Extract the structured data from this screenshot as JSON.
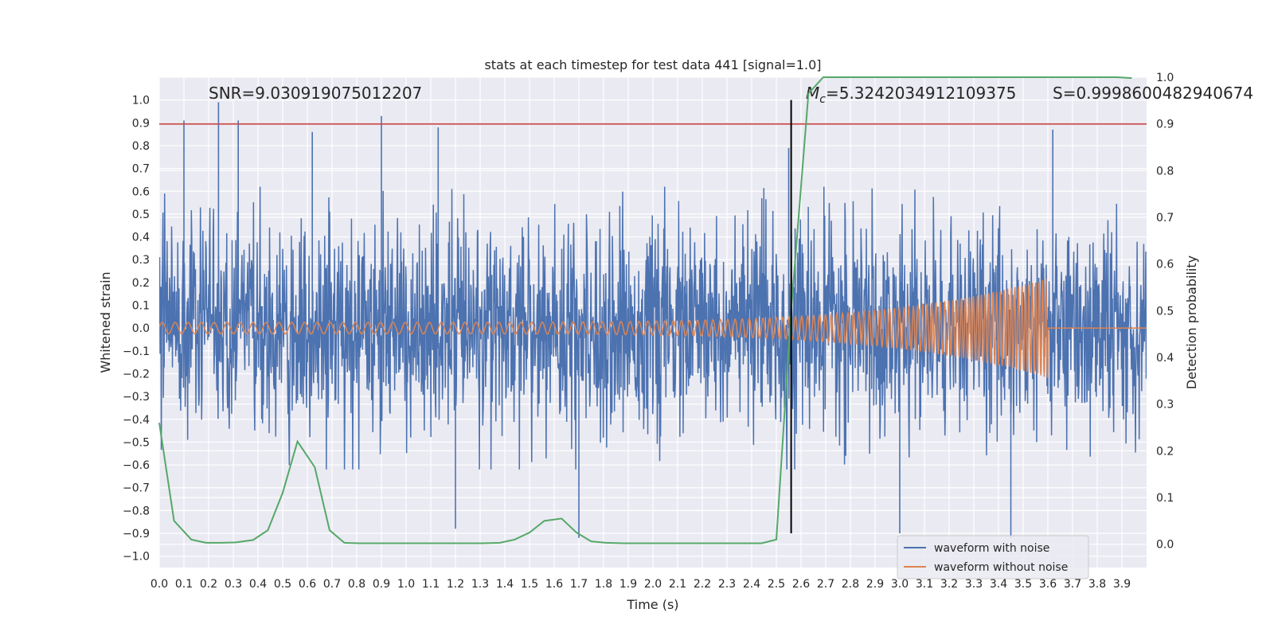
{
  "chart_data": {
    "type": "line",
    "title": "stats at each timestep for test data 441 [signal=1.0]",
    "xlabel": "Time (s)",
    "ylabel": "Whitened strain",
    "ylabel_right": "Detection probability",
    "xlim": [
      0.0,
      4.0
    ],
    "ylim": [
      -1.05,
      1.1
    ],
    "ylim_right": [
      -0.05,
      1.0
    ],
    "x_ticks": [
      "0.0",
      "0.1",
      "0.2",
      "0.3",
      "0.4",
      "0.5",
      "0.6",
      "0.7",
      "0.8",
      "0.9",
      "1.0",
      "1.1",
      "1.2",
      "1.3",
      "1.4",
      "1.5",
      "1.6",
      "1.7",
      "1.8",
      "1.9",
      "2.0",
      "2.1",
      "2.2",
      "2.3",
      "2.4",
      "2.5",
      "2.6",
      "2.7",
      "2.8",
      "2.9",
      "3.0",
      "3.1",
      "3.2",
      "3.3",
      "3.4",
      "3.5",
      "3.6",
      "3.7",
      "3.8",
      "3.9"
    ],
    "y_ticks": [
      "1.0",
      "0.9",
      "0.8",
      "0.7",
      "0.6",
      "0.5",
      "0.4",
      "0.3",
      "0.2",
      "0.1",
      "0.0",
      "−0.1",
      "−0.2",
      "−0.3",
      "−0.4",
      "−0.5",
      "−0.6",
      "−0.7",
      "−0.8",
      "−0.9",
      "−1.0"
    ],
    "y_ticks_right": [
      "1.0",
      "0.9",
      "0.8",
      "0.7",
      "0.6",
      "0.5",
      "0.4",
      "0.3",
      "0.2",
      "0.1",
      "0.0"
    ],
    "grid": true,
    "legend_position": "lower right",
    "annotations": {
      "snr": "SNR=9.030919075012207",
      "mc_symbol": "M",
      "mc_sub": "c",
      "mc_value": "=5.3242034912109375",
      "s": "S=0.9998600482940674"
    },
    "threshold_line": {
      "y_right": 0.9,
      "color": "#c44e52"
    },
    "marker_line": {
      "x": 2.56,
      "y_range": [
        -0.9,
        1.0
      ],
      "color": "#000000"
    },
    "series": [
      {
        "name": "waveform with noise",
        "color": "#4c72b0",
        "description_values": {
          "typical_range": [
            -0.45,
            0.45
          ],
          "peaks": [
            [
              0.1,
              0.91
            ],
            [
              0.24,
              0.99
            ],
            [
              0.32,
              0.91
            ],
            [
              0.62,
              0.86
            ],
            [
              0.9,
              0.93
            ],
            [
              1.13,
              0.88
            ],
            [
              1.2,
              -0.88
            ],
            [
              2.55,
              0.79
            ],
            [
              3.62,
              0.87
            ],
            [
              1.7,
              -0.92
            ],
            [
              3.0,
              -0.9
            ],
            [
              3.45,
              -0.92
            ]
          ]
        }
      },
      {
        "name": "waveform without noise",
        "color": "#dd8452",
        "chirp": {
          "start_freq_hz": 19,
          "end_freq_hz": 75,
          "start_amp": 0.025,
          "end_amp": 0.22,
          "merger_time": 3.6
        }
      },
      {
        "name": "",
        "axis": "right",
        "color": "#55a868",
        "x": [
          0.0,
          0.06,
          0.13,
          0.19,
          0.25,
          0.31,
          0.38,
          0.44,
          0.5,
          0.56,
          0.63,
          0.69,
          0.75,
          0.81,
          0.88,
          0.94,
          1.0,
          1.06,
          1.13,
          1.19,
          1.25,
          1.31,
          1.38,
          1.44,
          1.5,
          1.56,
          1.63,
          1.69,
          1.75,
          1.81,
          1.88,
          1.94,
          2.0,
          2.06,
          2.13,
          2.19,
          2.25,
          2.31,
          2.38,
          2.44,
          2.5,
          2.56,
          2.63,
          2.69,
          2.75,
          2.81,
          2.88,
          2.94,
          3.0,
          3.06,
          3.13,
          3.19,
          3.25,
          3.31,
          3.38,
          3.44,
          3.5,
          3.56,
          3.63,
          3.69,
          3.75,
          3.81,
          3.88,
          3.94
        ],
        "y": [
          0.26,
          0.05,
          0.01,
          0.003,
          0.003,
          0.004,
          0.009,
          0.03,
          0.11,
          0.22,
          0.165,
          0.03,
          0.003,
          0.002,
          0.002,
          0.002,
          0.002,
          0.002,
          0.002,
          0.002,
          0.002,
          0.002,
          0.003,
          0.01,
          0.025,
          0.05,
          0.055,
          0.025,
          0.006,
          0.003,
          0.002,
          0.002,
          0.002,
          0.002,
          0.002,
          0.002,
          0.002,
          0.002,
          0.002,
          0.002,
          0.01,
          0.5,
          0.965,
          1.0,
          1.0,
          1.0,
          1.0,
          1.0,
          1.0,
          1.0,
          1.0,
          1.0,
          1.0,
          1.0,
          1.0,
          1.0,
          1.0,
          1.0,
          1.0,
          1.0,
          1.0,
          1.0,
          1.0,
          0.998
        ]
      }
    ]
  }
}
